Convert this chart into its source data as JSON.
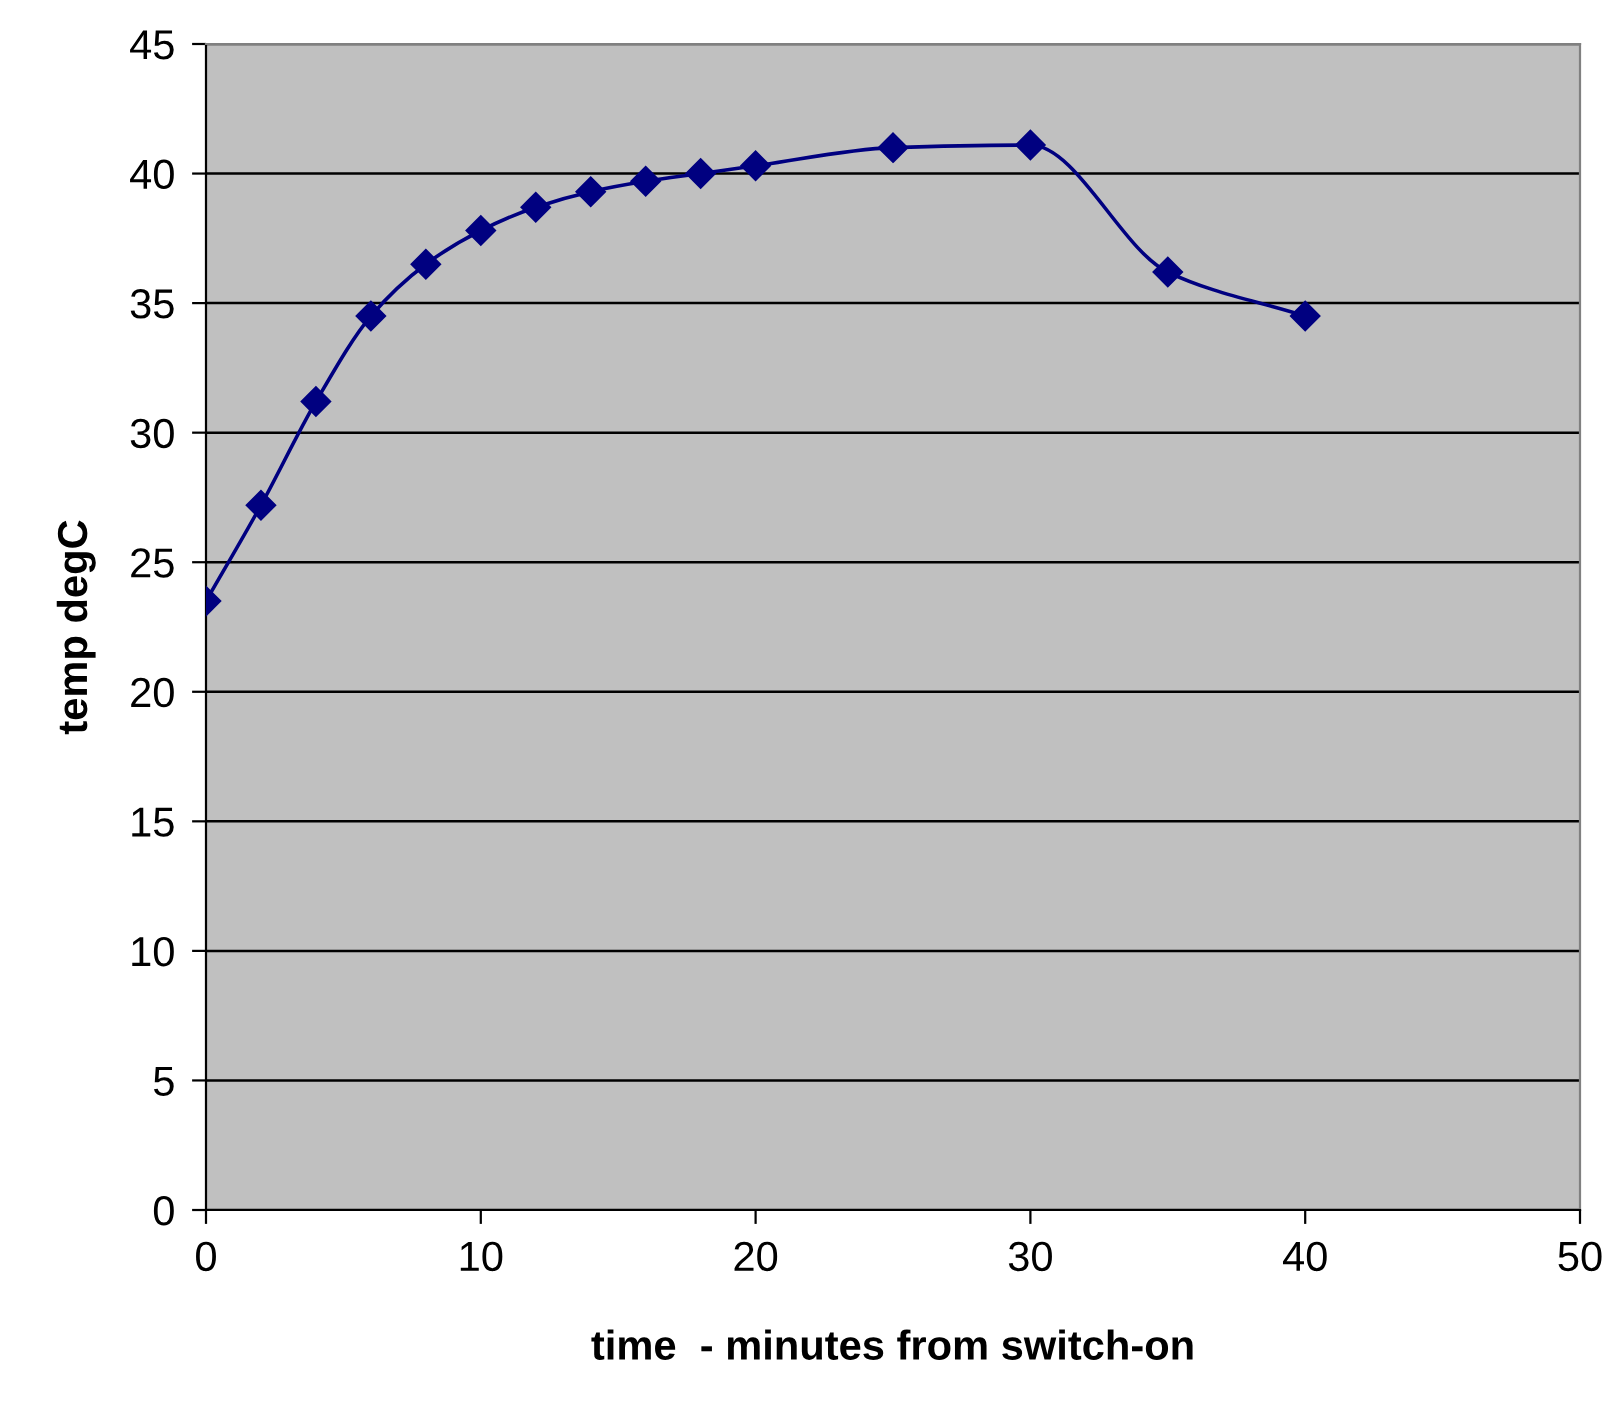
{
  "chart_data": {
    "type": "line",
    "xlabel": "time  - minutes from switch-on",
    "ylabel": "temp degC",
    "x": [
      0,
      2,
      4,
      6,
      8,
      10,
      12,
      14,
      16,
      18,
      20,
      25,
      30,
      35,
      40
    ],
    "series": [
      {
        "color": "#000080",
        "values": [
          23.5,
          27.2,
          31.2,
          34.5,
          36.5,
          37.8,
          38.7,
          39.3,
          39.7,
          40.0,
          40.3,
          41.0,
          41.1,
          36.2,
          34.5
        ]
      }
    ],
    "xlim": [
      0,
      50
    ],
    "xticks": [
      0,
      10,
      20,
      30,
      40,
      50
    ],
    "ylim": [
      0,
      45
    ],
    "yticks": [
      0,
      5,
      10,
      15,
      20,
      25,
      30,
      35,
      40,
      45
    ],
    "grid": "y",
    "marker": "diamond",
    "line_style": "solid",
    "legend": false
  }
}
